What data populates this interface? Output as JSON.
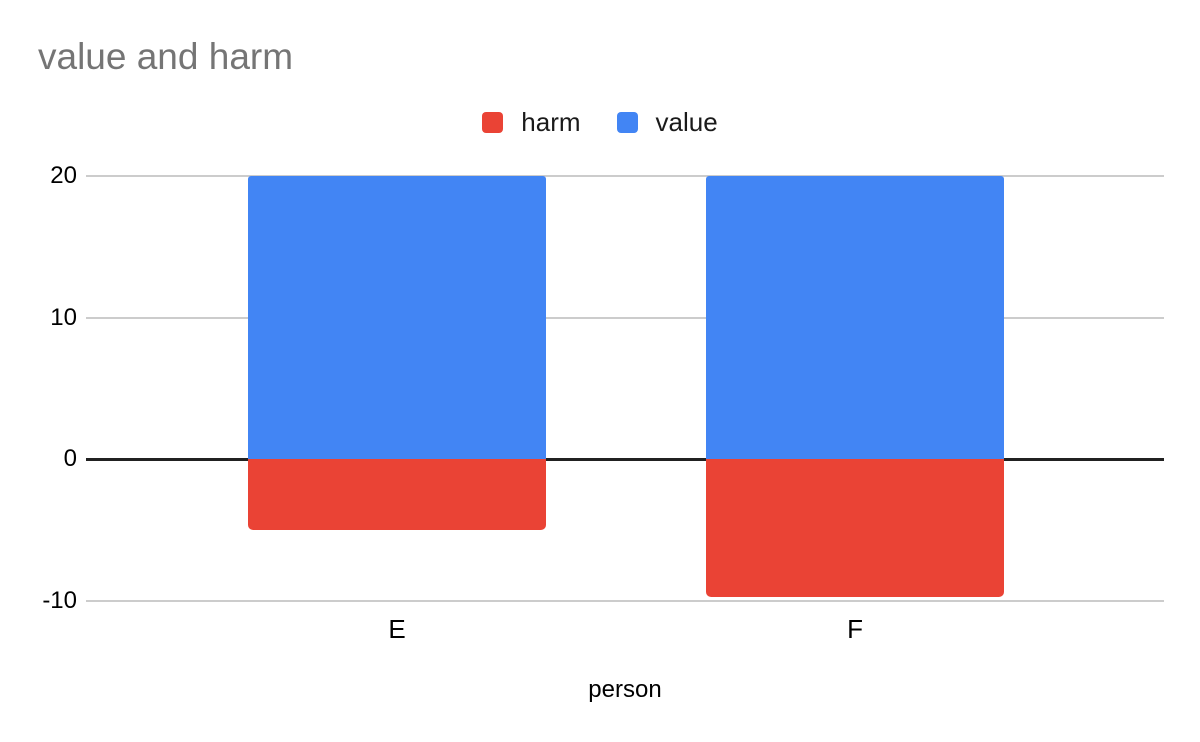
{
  "title": "value and harm",
  "chart_data": {
    "type": "bar",
    "bar_orientation": "vertical",
    "title": "value and harm",
    "xlabel": "person",
    "ylabel": "",
    "categories": [
      "E",
      "F"
    ],
    "series": [
      {
        "name": "harm",
        "color": "#EA4335",
        "values": [
          -5,
          -9.75
        ]
      },
      {
        "name": "value",
        "color": "#4285F4",
        "values": [
          20,
          20
        ]
      }
    ],
    "ylim": [
      -10,
      20
    ],
    "yticks": [
      20,
      10,
      0,
      -10
    ],
    "grid": true,
    "legend_position": "top-center"
  },
  "colors": {
    "background": "#ffffff",
    "title_text": "#757575",
    "axis_text": "#000000",
    "gridline": "#cccccc",
    "zero_line": "#212121",
    "harm": "#EA4335",
    "value": "#4285F4"
  }
}
